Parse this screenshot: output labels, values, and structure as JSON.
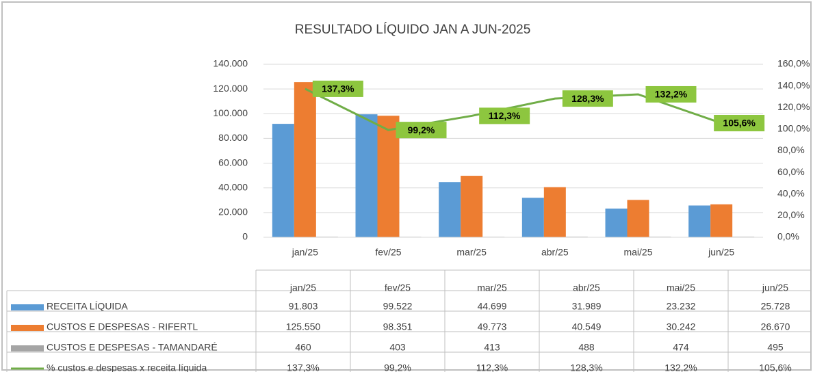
{
  "chart_data": {
    "type": "bar",
    "title": "RESULTADO LÍQUIDO JAN A JUN-2025",
    "categories": [
      "jan/25",
      "fev/25",
      "mar/25",
      "abr/25",
      "mai/25",
      "jun/25"
    ],
    "series": [
      {
        "name": "RECEITA LÍQUIDA",
        "color": "#5b9bd5",
        "values": [
          91803,
          99522,
          44699,
          31989,
          23232,
          25728
        ],
        "value_labels": [
          "91.803",
          "99.522",
          "44.699",
          "31.989",
          "23.232",
          "25.728"
        ]
      },
      {
        "name": "CUSTOS E DESPESAS - RIFERTL",
        "color": "#ed7d31",
        "values": [
          125550,
          98351,
          49773,
          40549,
          30242,
          26670
        ],
        "value_labels": [
          "125.550",
          "98.351",
          "49.773",
          "40.549",
          "30.242",
          "26.670"
        ]
      },
      {
        "name": "CUSTOS E DESPESAS - TAMANDARÉ",
        "color": "#a5a5a5",
        "values": [
          460,
          403,
          413,
          488,
          474,
          495
        ]
      },
      {
        "name": "% custos e despesas x receita líquida",
        "color": "#70ad47",
        "type": "line",
        "axis": "y2",
        "values": [
          137.3,
          99.2,
          112.3,
          128.3,
          132.2,
          105.6
        ],
        "value_labels": [
          "137,3%",
          "99,2%",
          "112,3%",
          "128,3%",
          "132,2%",
          "105,6%"
        ]
      }
    ],
    "ylim": [
      0,
      140000
    ],
    "yticks": [
      0,
      {
        "value": 20000,
        "label": "20.000"
      },
      {
        "value": 40000,
        "label": "40.000"
      },
      {
        "value": 60000,
        "label": "60.000"
      },
      {
        "value": 80000,
        "label": "80.000"
      },
      {
        "value": 100000,
        "label": "100.000"
      },
      {
        "value": 120000,
        "label": "120.000"
      },
      {
        "value": 140000,
        "label": "140.000"
      }
    ],
    "y2lim": [
      0,
      160
    ],
    "y2ticks": [
      {
        "value": 0,
        "label": "0,0%"
      },
      {
        "value": 20,
        "label": "20,0%"
      },
      {
        "value": 40,
        "label": "40,0%"
      },
      {
        "value": 60,
        "label": "60,0%"
      },
      {
        "value": 80,
        "label": "80,0%"
      },
      {
        "value": 100,
        "label": "100,0%"
      },
      {
        "value": 120,
        "label": "120,0%"
      },
      {
        "value": 140,
        "label": "140,0%"
      },
      {
        "value": 160,
        "label": "160,0%"
      }
    ],
    "grid": true,
    "data_table": true
  }
}
